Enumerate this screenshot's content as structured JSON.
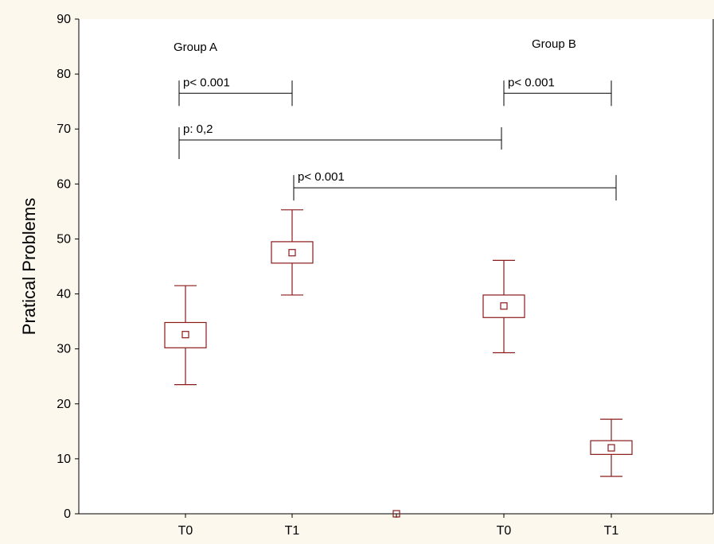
{
  "chart_data": {
    "type": "box",
    "ylabel": "Pratical Problems",
    "ylim": [
      0,
      90
    ],
    "yticks": [
      0,
      10,
      20,
      30,
      40,
      50,
      60,
      70,
      80,
      90
    ],
    "categories": [
      "T0",
      "T1",
      "",
      "T0",
      "T1"
    ],
    "groups": [
      {
        "label": "Group A"
      },
      {
        "label": "Group B"
      }
    ],
    "boxes": [
      {
        "category_index": 0,
        "label": "T0",
        "group": "Group A",
        "whisker_low": 23.5,
        "box_low": 30.2,
        "center": 32.6,
        "box_high": 34.8,
        "whisker_high": 41.5
      },
      {
        "category_index": 1,
        "label": "T1",
        "group": "Group A",
        "whisker_low": 39.8,
        "box_low": 45.6,
        "center": 47.5,
        "box_high": 49.5,
        "whisker_high": 55.3
      },
      {
        "category_index": 2,
        "label": "",
        "group": "",
        "whisker_low": 0,
        "box_low": 0,
        "center": 0,
        "box_high": 0,
        "whisker_high": 0
      },
      {
        "category_index": 3,
        "label": "T0",
        "group": "Group B",
        "whisker_low": 29.3,
        "box_low": 35.7,
        "center": 37.8,
        "box_high": 39.8,
        "whisker_high": 46.1
      },
      {
        "category_index": 4,
        "label": "T1",
        "group": "Group B",
        "whisker_low": 6.8,
        "box_low": 10.8,
        "center": 12.0,
        "box_high": 13.3,
        "whisker_high": 17.2
      }
    ],
    "comparisons": [
      {
        "from": 0,
        "to": 1,
        "y": 76.5,
        "text": "p< 0.001"
      },
      {
        "from": 0,
        "to": 3,
        "y": 68.0,
        "text": "p: 0,2"
      },
      {
        "from": 1,
        "to": 4,
        "y": 59.3,
        "text": "p< 0.001"
      },
      {
        "from": 3,
        "to": 4,
        "y": 76.5,
        "text": "p< 0.001"
      }
    ],
    "colors": {
      "box": "#8b1a1a",
      "axis": "#000000",
      "plot_bg": "#ffffff",
      "page_bg": "#fdf8ee"
    }
  }
}
